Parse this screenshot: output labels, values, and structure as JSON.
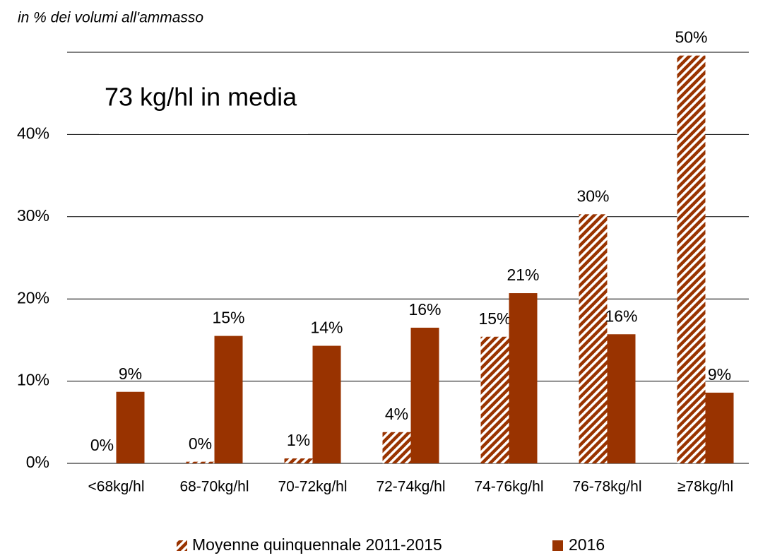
{
  "chart_data": {
    "type": "bar",
    "axis_label": "in % dei volumi all'ammasso",
    "annotation": "73 kg/hl in media",
    "categories": [
      "<68kg/hl",
      "68-70kg/hl",
      "70-72kg/hl",
      "72-74kg/hl",
      "74-76kg/hl",
      "76-78kg/hl",
      "≥78kg/hl"
    ],
    "series": [
      {
        "name": "Moyenne quinquennale 2011-2015",
        "color": "#993300",
        "pattern": "hatch",
        "values": [
          0,
          0.2,
          0.6,
          3.8,
          15.4,
          30.3,
          49.6
        ],
        "value_labels": [
          "0%",
          "0%",
          "1%",
          "4%",
          "15%",
          "30%",
          "50%"
        ]
      },
      {
        "name": "2016",
        "color": "#993300",
        "pattern": "solid",
        "values": [
          8.7,
          15.5,
          14.3,
          16.5,
          20.7,
          15.7,
          8.6
        ],
        "value_labels": [
          "9%",
          "15%",
          "14%",
          "16%",
          "21%",
          "16%",
          "9%"
        ]
      }
    ],
    "ylim": [
      0,
      50
    ],
    "yticks": [
      {
        "value": 0,
        "label": "0%"
      },
      {
        "value": 10,
        "label": "10%"
      },
      {
        "value": 20,
        "label": "20%"
      },
      {
        "value": 30,
        "label": "30%"
      },
      {
        "value": 40,
        "label": "40%"
      }
    ],
    "grid": true
  }
}
